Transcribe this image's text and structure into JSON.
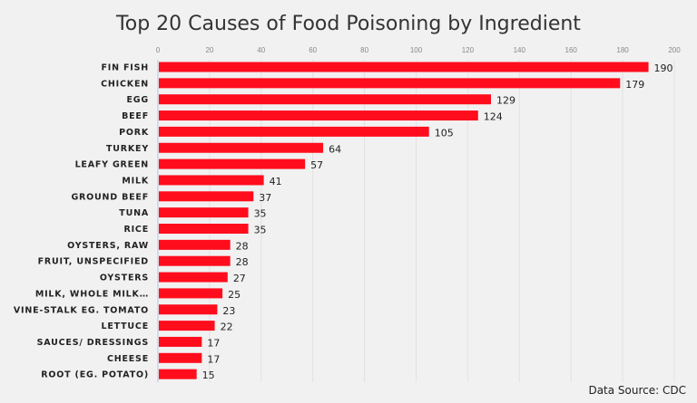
{
  "chart_data": {
    "type": "bar",
    "orientation": "horizontal",
    "title": "Top 20 Causes of Food Poisoning by Ingredient",
    "categories": [
      "FIN FISH",
      "CHICKEN",
      "EGG",
      "BEEF",
      "PORK",
      "TURKEY",
      "LEAFY GREEN",
      "MILK",
      "GROUND BEEF",
      "TUNA",
      "RICE",
      "OYSTERS, RAW",
      "FRUIT, UNSPECIFIED",
      "OYSTERS",
      "MILK, WHOLE MILK…",
      "VINE-STALK EG. TOMATO",
      "LETTUCE",
      "SAUCES/ DRESSINGS",
      "CHEESE",
      "ROOT (EG. POTATO)"
    ],
    "values": [
      190,
      179,
      129,
      124,
      105,
      64,
      57,
      41,
      37,
      35,
      35,
      28,
      28,
      27,
      25,
      23,
      22,
      17,
      17,
      15
    ],
    "xlim": [
      0,
      200
    ],
    "xticks": [
      0,
      20,
      40,
      60,
      80,
      100,
      120,
      140,
      160,
      180,
      200
    ],
    "xaxis_position": "top",
    "grid": true,
    "data_labels": true,
    "bar_color": "#ff0d1d",
    "source": "Data Source:  CDC"
  }
}
